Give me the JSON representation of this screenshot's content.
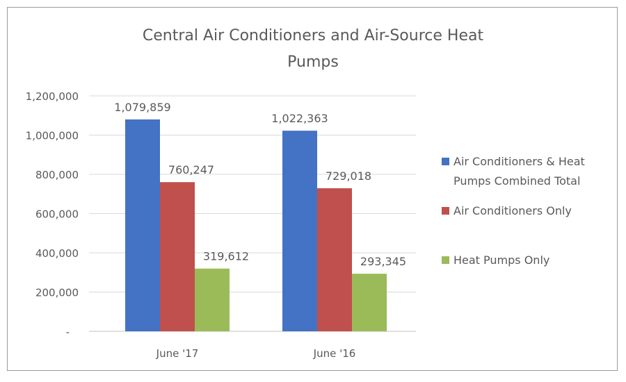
{
  "chart_data": {
    "type": "bar",
    "title": "Central Air Conditioners and Air-Source Heat Pumps",
    "title_lines": [
      "Central Air Conditioners and Air-Source Heat",
      "Pumps"
    ],
    "categories": [
      "June '17",
      "June '16"
    ],
    "series": [
      {
        "name": "Air Conditioners & Heat Pumps Combined Total",
        "name_lines": [
          "Air Conditioners & Heat",
          "Pumps Combined Total"
        ],
        "values": [
          1079859,
          1022363
        ],
        "labels": [
          "1,079,859",
          "1,022,363"
        ],
        "color": "#4472C4"
      },
      {
        "name": "Air Conditioners Only",
        "name_lines": [
          "Air Conditioners Only"
        ],
        "values": [
          760247,
          729018
        ],
        "labels": [
          "760,247",
          "729,018"
        ],
        "color": "#C0504D"
      },
      {
        "name": "Heat Pumps Only",
        "name_lines": [
          "Heat Pumps Only"
        ],
        "values": [
          319612,
          293345
        ],
        "labels": [
          "319,612",
          "293,345"
        ],
        "color": "#9BBB59"
      }
    ],
    "ylim": [
      0,
      1200000
    ],
    "yticks": [
      0,
      200000,
      400000,
      600000,
      800000,
      1000000,
      1200000
    ],
    "ytick_labels": [
      "-",
      "200,000",
      "400,000",
      "600,000",
      "800,000",
      "1,000,000",
      "1,200,000"
    ],
    "xlabel": "",
    "ylabel": "",
    "grid": true,
    "legend": "right"
  }
}
